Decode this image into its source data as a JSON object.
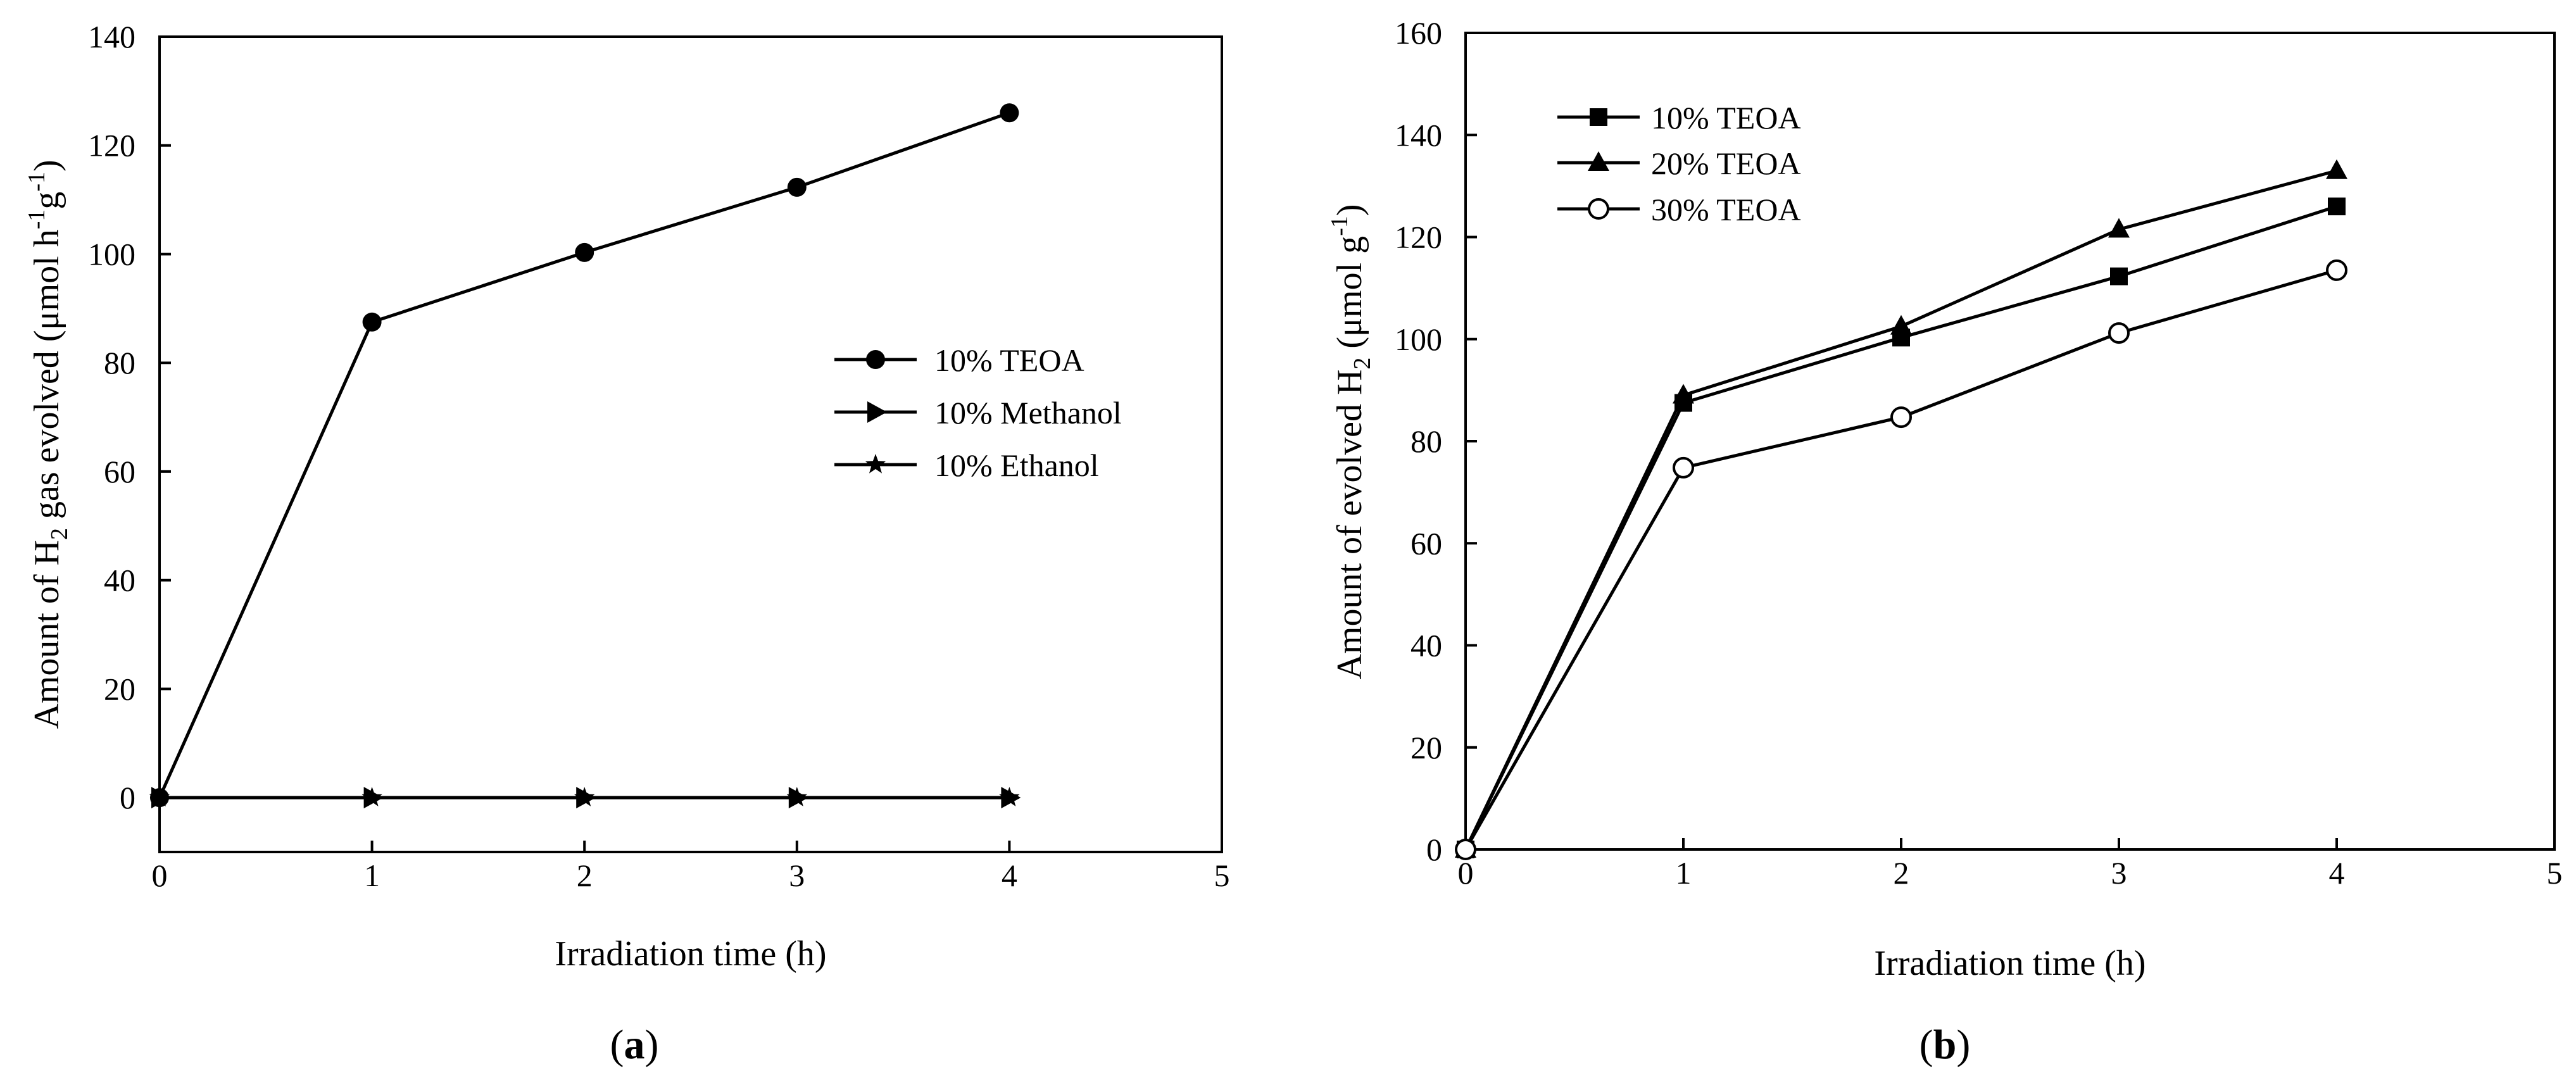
{
  "chart_data": [
    {
      "panel": "a",
      "caption_label": "a",
      "type": "line",
      "xlabel": "Irradiation time (h)",
      "ylabel": {
        "prefix": "Amount of H",
        "sub": "2",
        "middle": " gas evolved (μmol h",
        "sup1": "-1",
        "mid2": "g",
        "sup2": "-1",
        "suffix": ")"
      },
      "xlim": [
        0,
        5
      ],
      "ylim": [
        -10,
        140
      ],
      "xticks": [
        0,
        1,
        2,
        3,
        4,
        5
      ],
      "yticks": [
        0,
        20,
        40,
        60,
        80,
        100,
        120,
        140
      ],
      "legend_position": "center-right",
      "series": [
        {
          "name": "10% TEOA",
          "marker": "circle-filled",
          "x": [
            0,
            1,
            2,
            3,
            4
          ],
          "y": [
            0,
            87.5,
            100.3,
            112.3,
            126
          ]
        },
        {
          "name": "10% Methanol",
          "marker": "triangle-right-filled",
          "x": [
            0,
            1,
            2,
            3,
            4
          ],
          "y": [
            0,
            0,
            0,
            0,
            0
          ]
        },
        {
          "name": "10% Ethanol",
          "marker": "star-filled",
          "x": [
            0,
            1,
            2,
            3,
            4
          ],
          "y": [
            0,
            0,
            0,
            0,
            0
          ]
        }
      ]
    },
    {
      "panel": "b",
      "caption_label": "b",
      "type": "line",
      "xlabel": "Irradiation time (h)",
      "ylabel": {
        "prefix": "Amount of evolved H",
        "sub": "2",
        "middle": " (μmol g",
        "sup1": "-1",
        "suffix": ")"
      },
      "xlim": [
        0,
        5
      ],
      "ylim": [
        0,
        160
      ],
      "xticks": [
        0,
        1,
        2,
        3,
        4,
        5
      ],
      "yticks": [
        0,
        20,
        40,
        60,
        80,
        100,
        120,
        140,
        160
      ],
      "legend_position": "top-left",
      "series": [
        {
          "name": "10% TEOA",
          "marker": "square-filled",
          "x": [
            0,
            1,
            2,
            3,
            4
          ],
          "y": [
            0,
            87.5,
            100.3,
            112.3,
            126
          ]
        },
        {
          "name": "20% TEOA",
          "marker": "triangle-up-filled",
          "x": [
            0,
            1,
            2,
            3,
            4
          ],
          "y": [
            0,
            89,
            102.5,
            121.5,
            133
          ]
        },
        {
          "name": "30% TEOA",
          "marker": "circle-open",
          "x": [
            0,
            1,
            2,
            3,
            4
          ],
          "y": [
            0,
            74.8,
            84.7,
            101.2,
            113.5
          ]
        }
      ]
    }
  ]
}
